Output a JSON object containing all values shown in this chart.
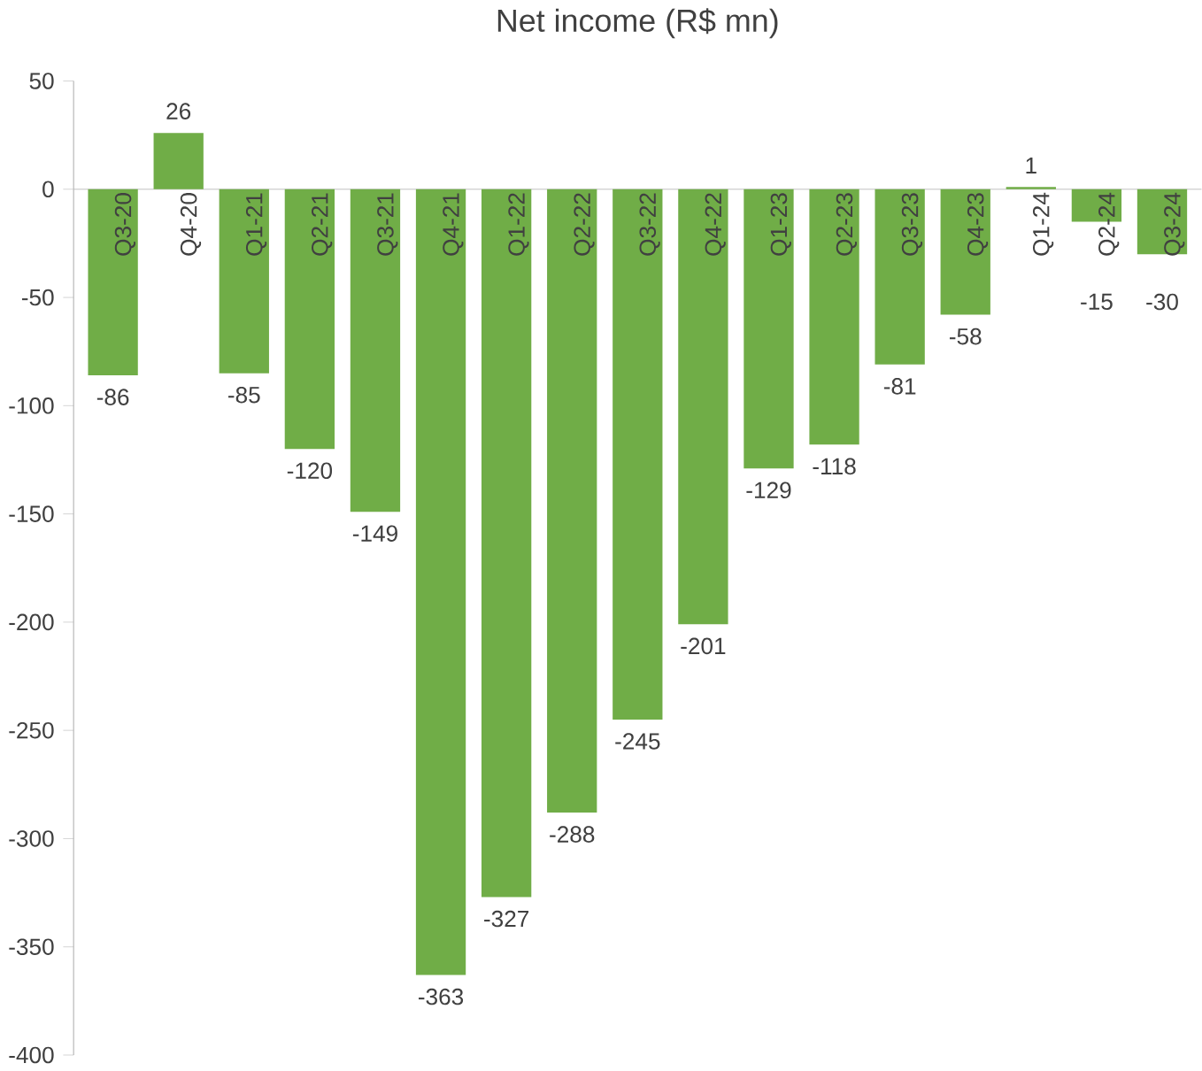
{
  "chart_data": {
    "type": "bar",
    "title": "Net income (R$ mn)",
    "categories": [
      "Q3-20",
      "Q4-20",
      "Q1-21",
      "Q2-21",
      "Q3-21",
      "Q4-21",
      "Q1-22",
      "Q2-22",
      "Q3-22",
      "Q4-22",
      "Q1-23",
      "Q2-23",
      "Q3-23",
      "Q4-23",
      "Q1-24",
      "Q2-24",
      "Q3-24"
    ],
    "values": [
      -86,
      26,
      -85,
      -120,
      -149,
      -363,
      -327,
      -288,
      -245,
      -201,
      -129,
      -118,
      -81,
      -58,
      1,
      -15,
      -30
    ],
    "color": "#70ad47",
    "ylim": [
      -400,
      50
    ],
    "yticks": [
      -400,
      -350,
      -300,
      -250,
      -200,
      -150,
      -100,
      -50,
      0,
      50
    ],
    "grid": false,
    "data_labels": true
  }
}
